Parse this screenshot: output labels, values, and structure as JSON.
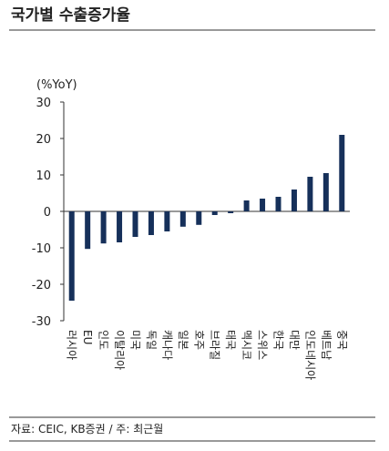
{
  "chart_data": {
    "type": "bar",
    "title": "국가별 수출증가율",
    "y_label": "(%YoY)",
    "categories": [
      "러시아",
      "EU",
      "인도",
      "이탈리아",
      "미국",
      "독일",
      "캐나다",
      "일본",
      "호주",
      "브라질",
      "태국",
      "멕시코",
      "스위스",
      "한국",
      "대만",
      "인도네시아",
      "베트남",
      "중국"
    ],
    "values": [
      -24.5,
      -10.3,
      -8.8,
      -8.5,
      -7,
      -6.5,
      -5.5,
      -4.2,
      -3.7,
      -1,
      -0.5,
      3,
      3.5,
      4,
      6,
      9.5,
      10.5,
      21
    ],
    "color": "#16305a",
    "ylim": [
      -30,
      30
    ],
    "yticks": [
      -30,
      -20,
      -10,
      0,
      10,
      20,
      30
    ],
    "source": "자료: CEIC, KB증권 / 주: 최근월"
  }
}
